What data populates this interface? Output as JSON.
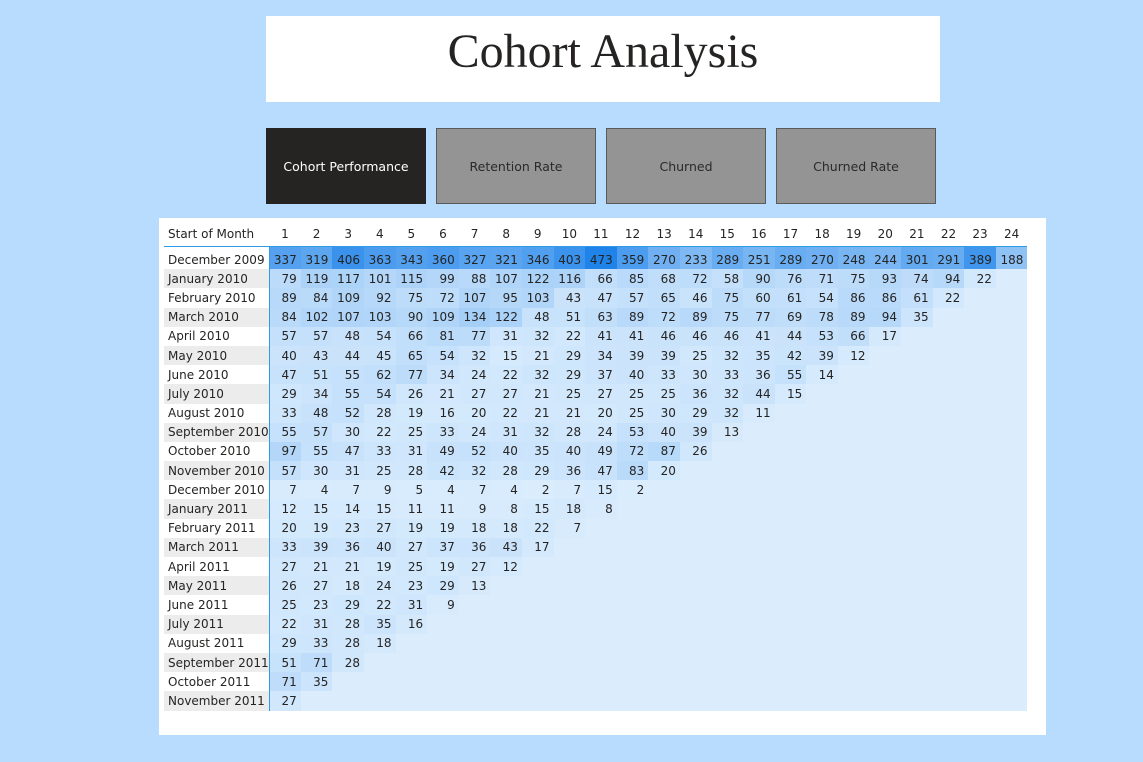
{
  "title": "Cohort Analysis",
  "tabs": [
    {
      "label": "Cohort Performance",
      "active": true
    },
    {
      "label": "Retention Rate",
      "active": false
    },
    {
      "label": "Churned",
      "active": false
    },
    {
      "label": "Churned Rate",
      "active": false
    }
  ],
  "colors": {
    "background": "#b8dcfd",
    "active_tab": "#252423",
    "inactive_tab": "#949494",
    "cell_min": "#dbedfd",
    "cell_max": "#1f83ea"
  },
  "matrix": {
    "row_header_label": "Start of Month",
    "columns": [
      "1",
      "2",
      "3",
      "4",
      "5",
      "6",
      "7",
      "8",
      "9",
      "10",
      "11",
      "12",
      "13",
      "14",
      "15",
      "16",
      "17",
      "18",
      "19",
      "20",
      "21",
      "22",
      "23",
      "24"
    ],
    "rows": [
      {
        "label": "December 2009",
        "values": [
          337,
          319,
          406,
          363,
          343,
          360,
          327,
          321,
          346,
          403,
          473,
          359,
          270,
          233,
          289,
          251,
          289,
          270,
          248,
          244,
          301,
          291,
          389,
          188
        ]
      },
      {
        "label": "January 2010",
        "values": [
          79,
          119,
          117,
          101,
          115,
          99,
          88,
          107,
          122,
          116,
          66,
          85,
          68,
          72,
          58,
          90,
          76,
          71,
          75,
          93,
          74,
          94,
          22
        ]
      },
      {
        "label": "February 2010",
        "values": [
          89,
          84,
          109,
          92,
          75,
          72,
          107,
          95,
          103,
          43,
          47,
          57,
          65,
          46,
          75,
          60,
          61,
          54,
          86,
          86,
          61,
          22
        ]
      },
      {
        "label": "March 2010",
        "values": [
          84,
          102,
          107,
          103,
          90,
          109,
          134,
          122,
          48,
          51,
          63,
          89,
          72,
          89,
          75,
          77,
          69,
          78,
          89,
          94,
          35
        ]
      },
      {
        "label": "April 2010",
        "values": [
          57,
          57,
          48,
          54,
          66,
          81,
          77,
          31,
          32,
          22,
          41,
          41,
          46,
          46,
          46,
          41,
          44,
          53,
          66,
          17
        ]
      },
      {
        "label": "May 2010",
        "values": [
          40,
          43,
          44,
          45,
          65,
          54,
          32,
          15,
          21,
          29,
          34,
          39,
          39,
          25,
          32,
          35,
          42,
          39,
          12
        ]
      },
      {
        "label": "June 2010",
        "values": [
          47,
          51,
          55,
          62,
          77,
          34,
          24,
          22,
          32,
          29,
          37,
          40,
          33,
          30,
          33,
          36,
          55,
          14
        ]
      },
      {
        "label": "July 2010",
        "values": [
          29,
          34,
          55,
          54,
          26,
          21,
          27,
          27,
          21,
          25,
          27,
          25,
          25,
          36,
          32,
          44,
          15
        ]
      },
      {
        "label": "August 2010",
        "values": [
          33,
          48,
          52,
          28,
          19,
          16,
          20,
          22,
          21,
          21,
          20,
          25,
          30,
          29,
          32,
          11
        ]
      },
      {
        "label": "September 2010",
        "values": [
          55,
          57,
          30,
          22,
          25,
          33,
          24,
          31,
          32,
          28,
          24,
          53,
          40,
          39,
          13
        ]
      },
      {
        "label": "October 2010",
        "values": [
          97,
          55,
          47,
          33,
          31,
          49,
          52,
          40,
          35,
          40,
          49,
          72,
          87,
          26
        ]
      },
      {
        "label": "November 2010",
        "values": [
          57,
          30,
          31,
          25,
          28,
          42,
          32,
          28,
          29,
          36,
          47,
          83,
          20
        ]
      },
      {
        "label": "December 2010",
        "values": [
          7,
          4,
          7,
          9,
          5,
          4,
          7,
          4,
          2,
          7,
          15,
          2
        ]
      },
      {
        "label": "January 2011",
        "values": [
          12,
          15,
          14,
          15,
          11,
          11,
          9,
          8,
          15,
          18,
          8
        ]
      },
      {
        "label": "February 2011",
        "values": [
          20,
          19,
          23,
          27,
          19,
          19,
          18,
          18,
          22,
          7
        ]
      },
      {
        "label": "March 2011",
        "values": [
          33,
          39,
          36,
          40,
          27,
          37,
          36,
          43,
          17
        ]
      },
      {
        "label": "April 2011",
        "values": [
          27,
          21,
          21,
          19,
          25,
          19,
          27,
          12
        ]
      },
      {
        "label": "May 2011",
        "values": [
          26,
          27,
          18,
          24,
          23,
          29,
          13
        ]
      },
      {
        "label": "June 2011",
        "values": [
          25,
          23,
          29,
          22,
          31,
          9
        ]
      },
      {
        "label": "July 2011",
        "values": [
          22,
          31,
          28,
          35,
          16
        ]
      },
      {
        "label": "August 2011",
        "values": [
          29,
          33,
          28,
          18
        ]
      },
      {
        "label": "September 2011",
        "values": [
          51,
          71,
          28
        ]
      },
      {
        "label": "October 2011",
        "values": [
          71,
          35
        ]
      },
      {
        "label": "November 2011",
        "values": [
          27
        ]
      }
    ]
  }
}
